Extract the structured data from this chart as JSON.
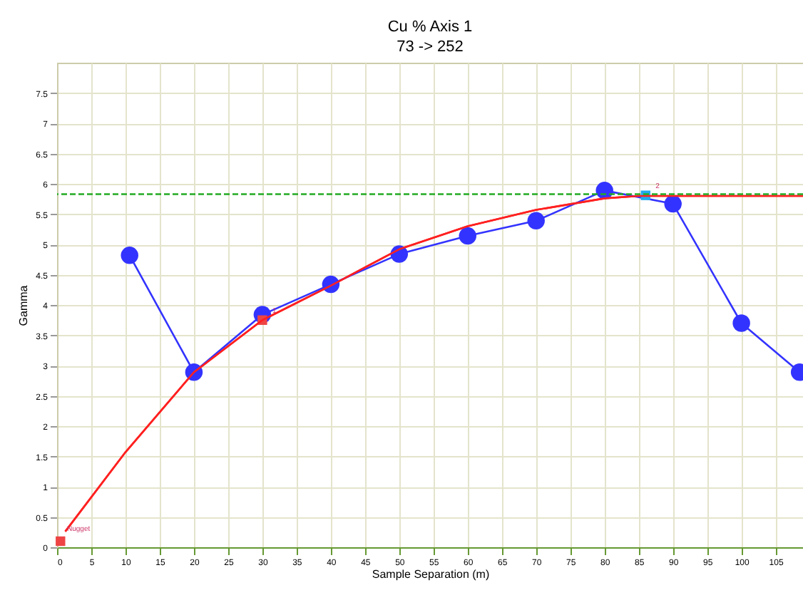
{
  "chart_data": {
    "type": "line",
    "title": "Cu % Axis 1",
    "subtitle": "73 -> 252",
    "xlabel": "Sample Separation (m)",
    "ylabel": "Gamma",
    "xlim": [
      0,
      109
    ],
    "xticks": [
      0,
      5,
      10,
      15,
      20,
      25,
      30,
      35,
      40,
      45,
      50,
      55,
      60,
      65,
      70,
      75,
      80,
      85,
      90,
      95,
      100,
      105
    ],
    "ylim": [
      0,
      8
    ],
    "yticks": [
      0,
      0.5,
      1,
      1.5,
      2,
      2.5,
      3,
      3.5,
      4,
      4.5,
      5,
      5.5,
      6,
      6.5,
      7,
      7.5
    ],
    "grid": true,
    "series": [
      {
        "color": "#ff2020",
        "x": [
          1.2,
          10,
          20,
          30,
          40,
          50,
          60,
          70,
          80,
          85,
          109
        ],
        "values": [
          0.26,
          1.57,
          2.89,
          3.75,
          4.32,
          4.92,
          5.3,
          5.57,
          5.76,
          5.8,
          5.8
        ]
      },
      {
        "marker": "circle",
        "color": "#3333ff",
        "x": [
          10.6,
          20,
          30,
          40,
          50,
          60,
          70,
          80,
          90,
          100,
          108.5
        ],
        "values": [
          4.82,
          2.89,
          3.84,
          4.34,
          4.84,
          5.14,
          5.39,
          5.89,
          5.67,
          3.7,
          2.89
        ]
      },
      {
        "type": "scatter",
        "marker": "square",
        "color": "#ee4444",
        "x": [
          0.5,
          30
        ],
        "values": [
          0.1,
          3.75
        ]
      },
      {
        "type": "scatter",
        "marker": "square",
        "color": "#22aaee",
        "x": [
          86
        ],
        "values": [
          5.81
        ]
      }
    ],
    "ref_lines": [
      {
        "axis": "y",
        "value": 5.83,
        "color": "#22aa22",
        "line_style": "dashed"
      }
    ],
    "annotations": [
      {
        "text": "Nugget",
        "x": 0,
        "y": 0.15
      },
      {
        "text": "1",
        "x": 30,
        "y": 3.75
      },
      {
        "text": "2",
        "x": 86,
        "y": 5.81
      }
    ]
  }
}
